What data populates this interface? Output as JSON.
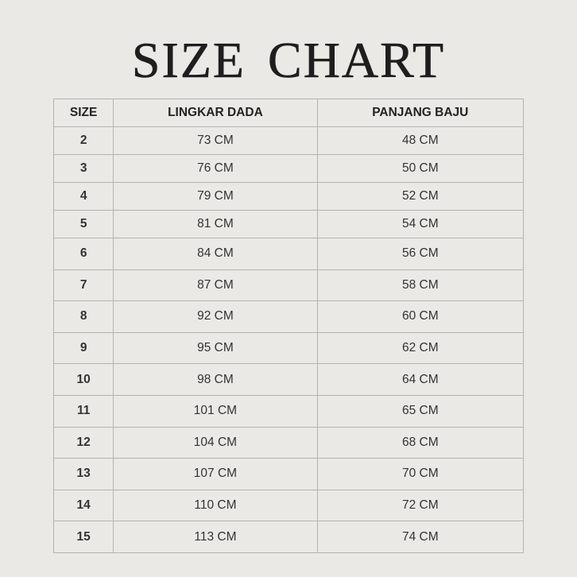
{
  "title": "SIZE CHART",
  "table": {
    "headers": [
      "SIZE",
      "LINGKAR DADA",
      "PANJANG BAJU"
    ],
    "rows": [
      [
        "2",
        "73 CM",
        "48 CM"
      ],
      [
        "3",
        "76 CM",
        "50 CM"
      ],
      [
        "4",
        "79 CM",
        "52 CM"
      ],
      [
        "5",
        "81 CM",
        "54 CM"
      ],
      [
        "6",
        "84 CM",
        "56 CM"
      ],
      [
        "7",
        "87 CM",
        "58 CM"
      ],
      [
        "8",
        "92 CM",
        "60 CM"
      ],
      [
        "9",
        "95 CM",
        "62 CM"
      ],
      [
        "10",
        "98 CM",
        "64 CM"
      ],
      [
        "11",
        "101 CM",
        "65 CM"
      ],
      [
        "12",
        "104 CM",
        "68 CM"
      ],
      [
        "13",
        "107 CM",
        "70 CM"
      ],
      [
        "14",
        "110 CM",
        "72 CM"
      ],
      [
        "15",
        "113 CM",
        "74 CM"
      ]
    ]
  }
}
